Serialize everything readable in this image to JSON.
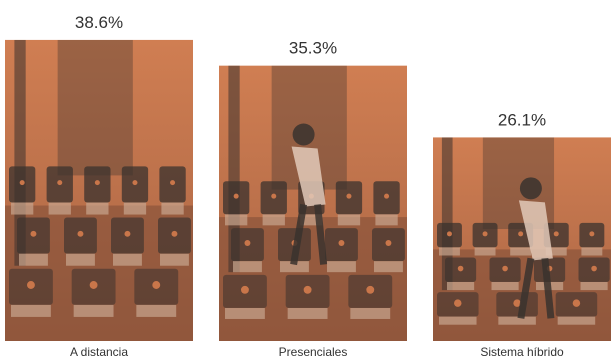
{
  "chart_data": {
    "type": "bar",
    "categories": [
      "A distancia",
      "Presenciales",
      "Sistema híbrido"
    ],
    "values": [
      38.6,
      35.3,
      26.1
    ],
    "value_labels": [
      "38.6%",
      "35.3%",
      "26.1%"
    ],
    "unit": "%",
    "title": "",
    "xlabel": "",
    "ylabel": "",
    "grid": false,
    "bar_fill": "photograph with orange-brown duotone tint"
  },
  "colors": {
    "tint_orange": "#c9764a",
    "tint_dark": "#3a322e",
    "text": "#333333",
    "background": "#ffffff"
  }
}
